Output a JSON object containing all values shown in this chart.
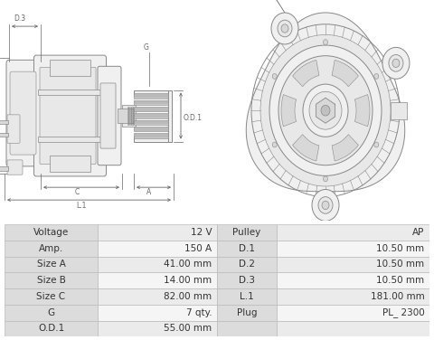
{
  "background_color": "#ffffff",
  "diagram_bg": "#ffffff",
  "line_color": "#888888",
  "dim_color": "#666666",
  "fill_light": "#f0f0f0",
  "fill_mid": "#e8e8e8",
  "fill_dark": "#d8d8d8",
  "table_data": [
    [
      "Voltage",
      "12 V",
      "Pulley",
      "AP"
    ],
    [
      "Amp.",
      "150 A",
      "D.1",
      "10.50 mm"
    ],
    [
      "Size A",
      "41.00 mm",
      "D.2",
      "10.50 mm"
    ],
    [
      "Size B",
      "14.00 mm",
      "D.3",
      "10.50 mm"
    ],
    [
      "Size C",
      "82.00 mm",
      "L.1",
      "181.00 mm"
    ],
    [
      "G",
      "7 qty.",
      "Plug",
      "PL_ 2300"
    ],
    [
      "O.D.1",
      "55.00 mm",
      "",
      ""
    ]
  ],
  "label_col_bg": "#dcdcdc",
  "val_col_bg_odd": "#ebebeb",
  "val_col_bg_even": "#f5f5f5",
  "border_color": "#bbbbbb",
  "text_color": "#333333",
  "font_size": 7.5
}
